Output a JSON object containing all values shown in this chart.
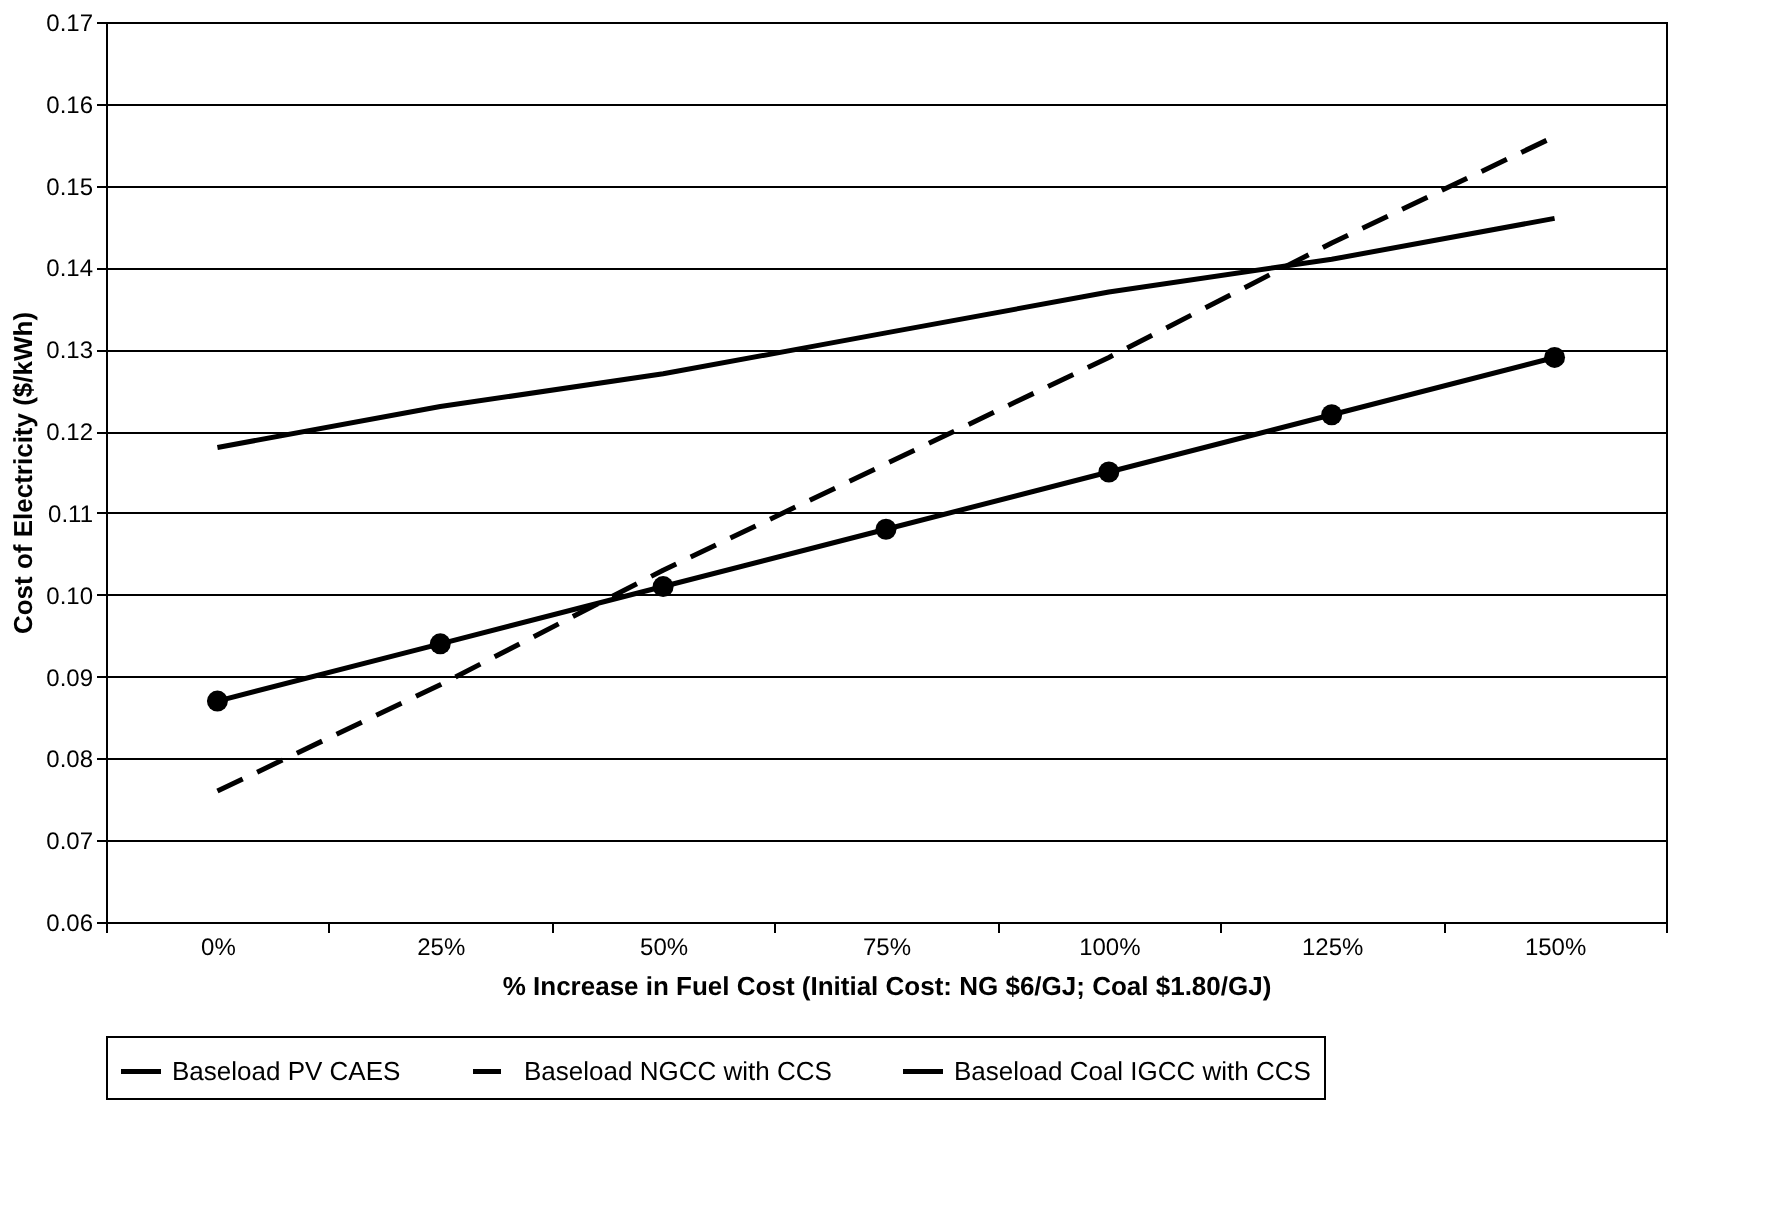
{
  "chart_data": {
    "type": "line",
    "xlabel": "% Increase in Fuel Cost (Initial Cost: NG $6/GJ; Coal $1.80/GJ)",
    "ylabel": "Cost of Electricity ($/kWh)",
    "categories": [
      "0%",
      "25%",
      "50%",
      "75%",
      "100%",
      "125%",
      "150%"
    ],
    "series": [
      {
        "name": "Baseload PV CAES",
        "color": "#000000",
        "line_style": "solid",
        "marker": "none",
        "values": [
          0.118,
          0.123,
          0.127,
          0.132,
          0.137,
          0.141,
          0.146
        ]
      },
      {
        "name": "Baseload NGCC with CCS",
        "color": "#000000",
        "line_style": "dashed",
        "marker": "none",
        "values": [
          0.076,
          0.089,
          0.103,
          0.116,
          0.129,
          0.143,
          0.156
        ]
      },
      {
        "name": "Baseload Coal IGCC with CCS",
        "color": "#000000",
        "line_style": "solid",
        "marker": "circle",
        "values": [
          0.087,
          0.094,
          0.101,
          0.108,
          0.115,
          0.122,
          0.129
        ]
      }
    ],
    "ylim": [
      0.06,
      0.17
    ],
    "yticks": [
      0.06,
      0.07,
      0.08,
      0.09,
      {
        "value": 0.1,
        "label": "0.10"
      },
      0.11,
      0.12,
      0.13,
      0.14,
      0.15,
      0.16,
      0.17
    ],
    "grid": "y",
    "legend": "bottom"
  }
}
